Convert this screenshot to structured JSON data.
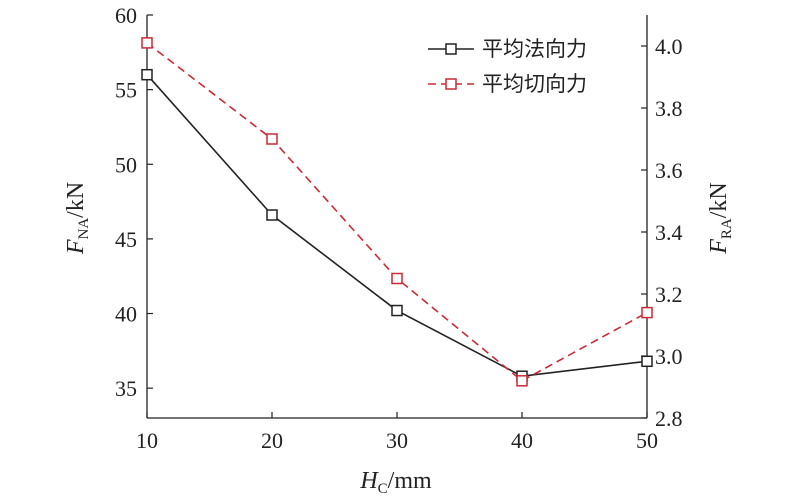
{
  "chart_data": {
    "type": "line",
    "x": [
      10,
      20,
      30,
      40,
      50
    ],
    "x_ticks": [
      "10",
      "20",
      "30",
      "40",
      "50"
    ],
    "xlim": [
      10,
      50
    ],
    "xlabel": {
      "main": "H",
      "sub": "C",
      "unit": "/mm"
    },
    "ylabel_left": {
      "main": "F",
      "sub": "NA",
      "unit": "/kN"
    },
    "ylabel_right": {
      "main": "F",
      "sub": "RA",
      "unit": "/kN"
    },
    "ylim_left": [
      33,
      60
    ],
    "ylim_right": [
      2.8,
      4.1
    ],
    "y_ticks_left": [
      "35",
      "40",
      "45",
      "50",
      "55",
      "60"
    ],
    "y_ticks_right": [
      "2.8",
      "3.0",
      "3.2",
      "3.4",
      "3.6",
      "3.8",
      "4.0"
    ],
    "grid": false,
    "legend_position": "top-right",
    "series": [
      {
        "name": "平均法向力",
        "axis": "left",
        "values": [
          56.0,
          46.6,
          40.2,
          35.8,
          36.8
        ],
        "color": "#222222",
        "line_style": "solid",
        "marker": "square"
      },
      {
        "name": "平均切向力",
        "axis": "right",
        "values": [
          4.01,
          3.7,
          3.25,
          2.92,
          3.14
        ],
        "color": "#cc2a36",
        "line_style": "dashed",
        "marker": "square"
      }
    ]
  }
}
